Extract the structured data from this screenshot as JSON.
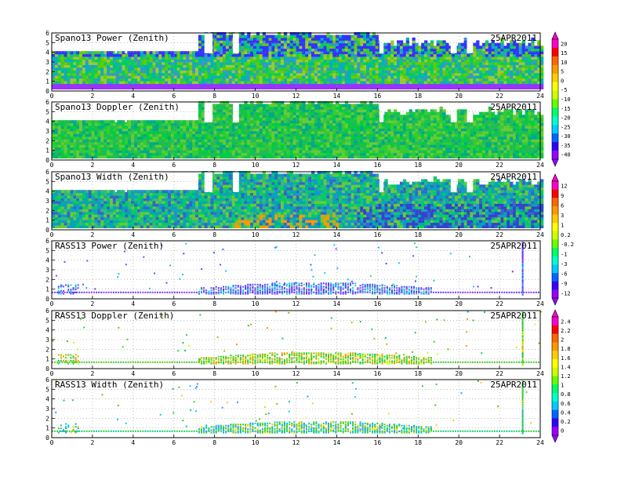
{
  "date_label": "25APR2011",
  "x_ticks": [
    "0",
    "2",
    "4",
    "6",
    "8",
    "10",
    "12",
    "14",
    "16",
    "18",
    "20",
    "22",
    "24"
  ],
  "y_ticks": [
    "0",
    "1",
    "2",
    "3",
    "4",
    "5",
    "6"
  ],
  "colorbars": [
    {
      "ticks": [
        "20",
        "15",
        "10",
        "5",
        "0",
        "-5",
        "-10",
        "-15",
        "-20",
        "-25",
        "-30",
        "-35",
        "-40"
      ],
      "colors": [
        "#ff00cc",
        "#ff0000",
        "#ff6600",
        "#ff9900",
        "#ffcc00",
        "#ffff00",
        "#ccff00",
        "#66ff00",
        "#00ff66",
        "#00ffcc",
        "#00ccff",
        "#0066ff",
        "#3300ff",
        "#9900ff"
      ]
    },
    {
      "ticks": [
        "12",
        "9",
        "6",
        "3",
        "1",
        "0.2",
        "-0.2",
        "-1",
        "-3",
        "-6",
        "-9",
        "-12"
      ],
      "colors": [
        "#ff00cc",
        "#ff0000",
        "#ff6600",
        "#ff9900",
        "#ffcc00",
        "#ffff00",
        "#ccff00",
        "#66ff00",
        "#00ff66",
        "#00ffcc",
        "#00ccff",
        "#0066ff",
        "#3300ff",
        "#9900ff"
      ]
    },
    {
      "ticks": [
        "2.4",
        "2.2",
        "2",
        "1.8",
        "1.6",
        "1.4",
        "1.2",
        "1",
        "0.8",
        "0.6",
        "0.4",
        "0.2",
        "0"
      ],
      "colors": [
        "#ff00cc",
        "#ff0000",
        "#ff6600",
        "#ff9900",
        "#ffcc00",
        "#ffff00",
        "#ccff00",
        "#66ff00",
        "#00ff66",
        "#00ffcc",
        "#00ccff",
        "#0066ff",
        "#3300ff",
        "#9900ff"
      ]
    }
  ],
  "chart_data": [
    {
      "type": "heatmap",
      "title": "Spano13 Power (Zenith)",
      "xlim": [
        0,
        24
      ],
      "ylim": [
        0,
        6
      ],
      "grid": true
    },
    {
      "type": "heatmap",
      "title": "Spano13 Doppler (Zenith)",
      "xlim": [
        0,
        24
      ],
      "ylim": [
        0,
        6
      ],
      "grid": true
    },
    {
      "type": "heatmap",
      "title": "Spano13 Width (Zenith)",
      "xlim": [
        0,
        24
      ],
      "ylim": [
        0,
        6
      ],
      "grid": true
    },
    {
      "type": "heatmap",
      "title": "RASS13 Power (Zenith)",
      "xlim": [
        0,
        24
      ],
      "ylim": [
        0,
        6
      ],
      "grid": true
    },
    {
      "type": "heatmap",
      "title": "RASS13 Doppler (Zenith)",
      "xlim": [
        0,
        24
      ],
      "ylim": [
        0,
        6
      ],
      "grid": true
    },
    {
      "type": "heatmap",
      "title": "RASS13 Width (Zenith)",
      "xlim": [
        0,
        24
      ],
      "ylim": [
        0,
        6
      ],
      "grid": true
    }
  ]
}
